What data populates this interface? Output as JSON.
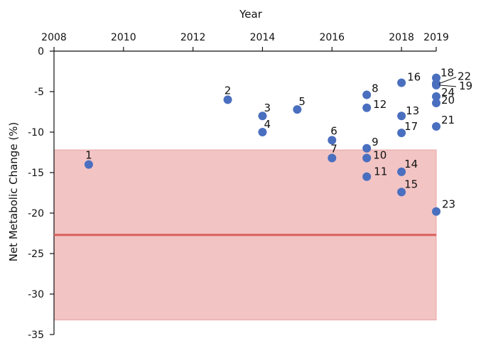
{
  "chart_data": {
    "type": "scatter",
    "xlabel": "Year",
    "ylabel": "Net Metabolic Change (%)",
    "x_ticks": [
      2008,
      2010,
      2012,
      2014,
      2016,
      2018,
      2019
    ],
    "y_ticks": [
      0,
      -5,
      -10,
      -15,
      -20,
      -25,
      -30,
      -35
    ],
    "xlim": [
      2008,
      2019
    ],
    "ylim": [
      -35,
      0
    ],
    "x_axis_position": "top",
    "grid": false,
    "colors": {
      "points": "#4a6fbf",
      "band_fill": "#f2c4c4",
      "band_stroke": "#eba5a5",
      "mean_line": "#d9605c"
    },
    "reference_band": {
      "y_min": -33.2,
      "y_max": -12.2
    },
    "reference_line": {
      "y": -22.7
    },
    "points": [
      {
        "label": "1",
        "x": 2009.0,
        "y": -14.0
      },
      {
        "label": "2",
        "x": 2013.0,
        "y": -6.0
      },
      {
        "label": "3",
        "x": 2014.0,
        "y": -8.0
      },
      {
        "label": "4",
        "x": 2014.0,
        "y": -10.0
      },
      {
        "label": "5",
        "x": 2015.0,
        "y": -7.2
      },
      {
        "label": "6",
        "x": 2016.0,
        "y": -11.0
      },
      {
        "label": "7",
        "x": 2016.0,
        "y": -13.2
      },
      {
        "label": "8",
        "x": 2017.0,
        "y": -5.4
      },
      {
        "label": "9",
        "x": 2017.0,
        "y": -12.0
      },
      {
        "label": "10",
        "x": 2017.0,
        "y": -13.2
      },
      {
        "label": "11",
        "x": 2017.0,
        "y": -15.5
      },
      {
        "label": "12",
        "x": 2017.0,
        "y": -7.0
      },
      {
        "label": "13",
        "x": 2018.0,
        "y": -8.0
      },
      {
        "label": "14",
        "x": 2018.0,
        "y": -14.9
      },
      {
        "label": "15",
        "x": 2018.0,
        "y": -17.4
      },
      {
        "label": "16",
        "x": 2018.0,
        "y": -3.9
      },
      {
        "label": "17",
        "x": 2018.0,
        "y": -10.1
      },
      {
        "label": "18",
        "x": 2019.0,
        "y": -3.3
      },
      {
        "label": "19",
        "x": 2019.0,
        "y": -4.2
      },
      {
        "label": "20",
        "x": 2019.0,
        "y": -6.4
      },
      {
        "label": "21",
        "x": 2019.0,
        "y": -9.3
      },
      {
        "label": "22",
        "x": 2019.0,
        "y": -4.0
      },
      {
        "label": "23",
        "x": 2019.0,
        "y": -19.8
      },
      {
        "label": "24",
        "x": 2019.0,
        "y": -5.6
      }
    ]
  }
}
